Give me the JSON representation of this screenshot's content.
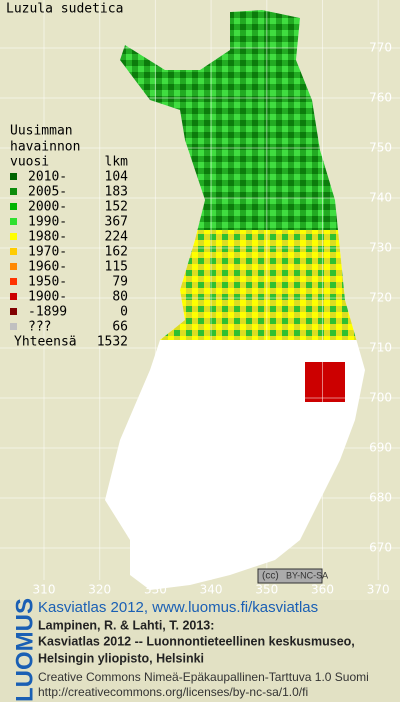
{
  "title": "Luzula sudetica",
  "legend": {
    "heading": [
      "Uusimman",
      "havainnon"
    ],
    "col_year": "vuosi",
    "col_count": "lkm",
    "items": [
      {
        "label": "2010-",
        "count": 104,
        "color": "#006400"
      },
      {
        "label": "2005-",
        "count": 183,
        "color": "#0c8c0c"
      },
      {
        "label": "2000-",
        "count": 152,
        "color": "#00b400"
      },
      {
        "label": "1990-",
        "count": 367,
        "color": "#30e030"
      },
      {
        "label": "1980-",
        "count": 224,
        "color": "#ffff00"
      },
      {
        "label": "1970-",
        "count": 162,
        "color": "#ffcc00"
      },
      {
        "label": "1960-",
        "count": 115,
        "color": "#ff8800"
      },
      {
        "label": "1950-",
        "count": 79,
        "color": "#ff3300"
      },
      {
        "label": "1900-",
        "count": 80,
        "color": "#cc0000"
      },
      {
        "label": "-1899",
        "count": 0,
        "color": "#800000"
      },
      {
        "label": "???",
        "count": 66,
        "color": "#c0c0c0"
      }
    ],
    "total_label": "Yhteensä",
    "total": 1532
  },
  "yticks": [
    770,
    760,
    750,
    740,
    730,
    720,
    710,
    700,
    690,
    680,
    670
  ],
  "xticks": [
    310,
    320,
    330,
    340,
    350,
    360,
    370
  ],
  "license_badge": "BY-NC-SA",
  "logo": "LUOMUS",
  "credits": {
    "link": "Kasviatlas 2012, www.luomus.fi/kasviatlas",
    "lines": [
      "Lampinen, R. & Lahti, T. 2013:",
      "Kasviatlas 2012 -- Luonnontieteellinen keskusmuseo,",
      "Helsingin yliopisto, Helsinki"
    ],
    "license": "Creative Commons Nimeä-Epäkaupallinen-Tarttuva 1.0 Suomi",
    "license_url": "http://creativecommons.org/licenses/by-nc-sa/1.0/fi"
  }
}
